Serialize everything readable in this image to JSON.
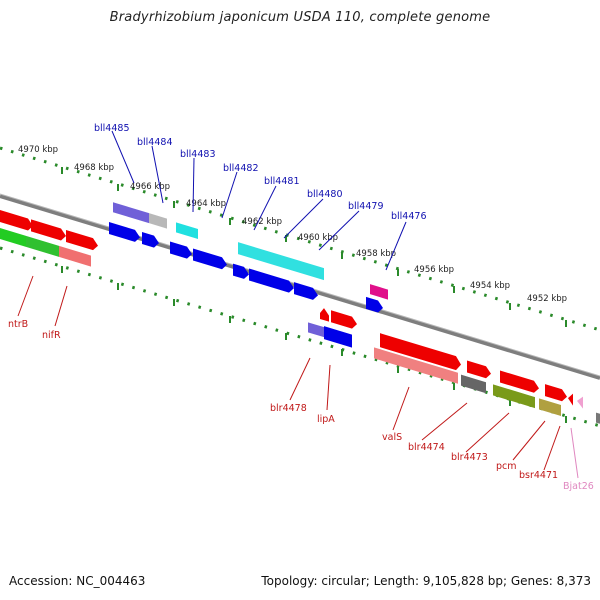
{
  "title": "Bradyrhizobium japonicum USDA 110, complete genome",
  "footer": {
    "accession": "Accession: NC_004463",
    "topology": "Topology: circular; Length: 9,105,828 bp; Genes: 8,373"
  },
  "scale_ticks": [
    "4970 kbp",
    "4968 kbp",
    "4966 kbp",
    "4964 kbp",
    "4962 kbp",
    "4960 kbp",
    "4958 kbp",
    "4956 kbp",
    "4954 kbp",
    "4952 kbp"
  ],
  "upper_genes": [
    "bll4485",
    "bll4484",
    "bll4483",
    "bll4482",
    "bll4481",
    "bll4480",
    "bll4479",
    "bll4476"
  ],
  "lower_genes": [
    "ntrB",
    "nifR",
    "blr4478",
    "lipA",
    "valS",
    "blr4474",
    "blr4473",
    "pcm",
    "bsr4471",
    "Bjat26"
  ],
  "colors": {
    "upper_label": "#1010b0",
    "lower_label": "#c01818",
    "trna_label": "#e088c0",
    "backbone": "#8a8a8a",
    "scale_dots": "#2a8a2a"
  }
}
